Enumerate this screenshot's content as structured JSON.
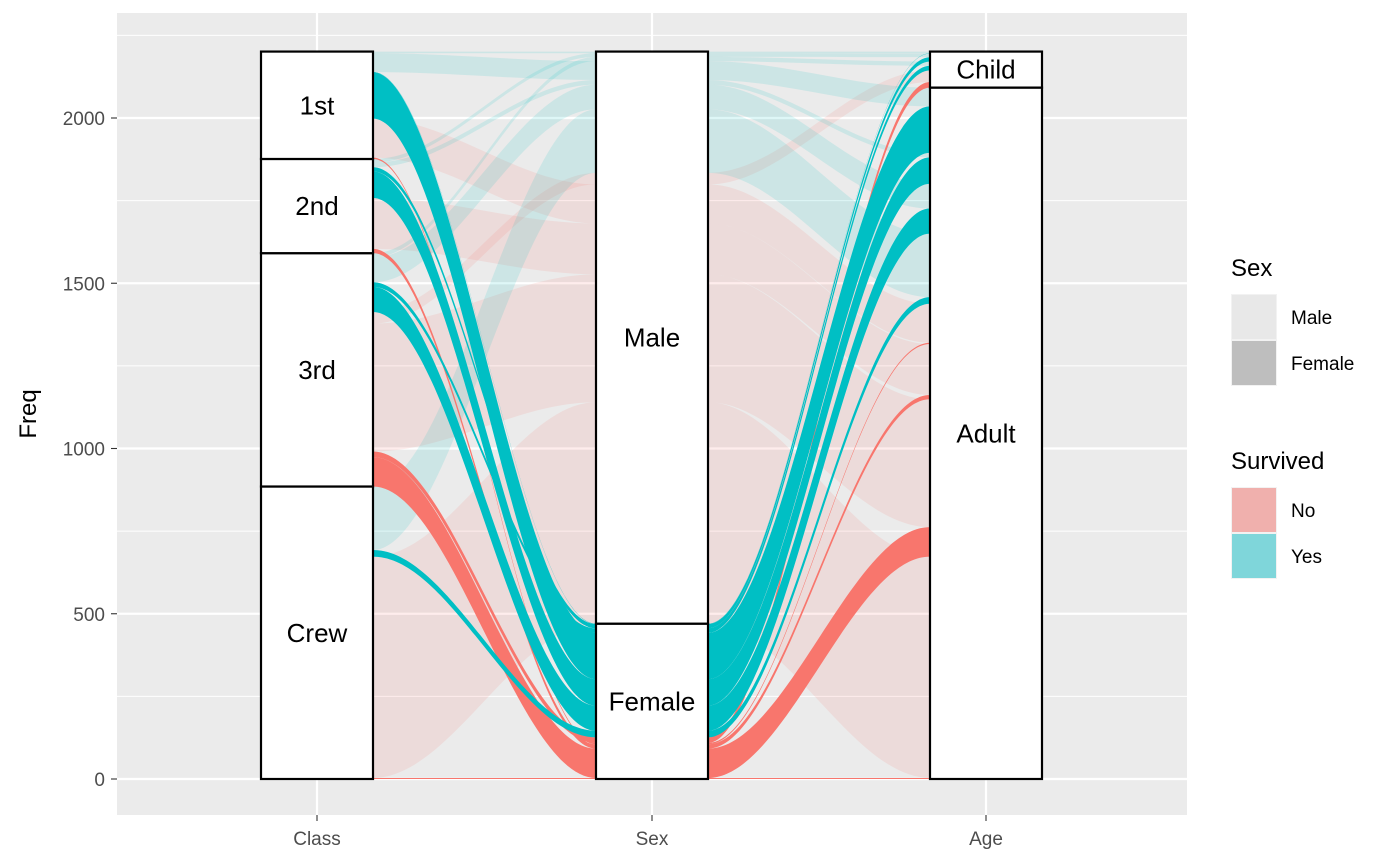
{
  "chart_data": {
    "type": "alluvial",
    "ylabel": "Freq",
    "ylim": [
      0,
      2200
    ],
    "y_ticks": [
      0,
      500,
      1000,
      1500,
      2000
    ],
    "axes": [
      "Class",
      "Sex",
      "Age"
    ],
    "strata": {
      "Class": [
        {
          "label": "Crew",
          "value": 885
        },
        {
          "label": "3rd",
          "value": 706
        },
        {
          "label": "2nd",
          "value": 285
        },
        {
          "label": "1st",
          "value": 325
        }
      ],
      "Sex": [
        {
          "label": "Female",
          "value": 470
        },
        {
          "label": "Male",
          "value": 1731
        }
      ],
      "Age": [
        {
          "label": "Adult",
          "value": 2092
        },
        {
          "label": "Child",
          "value": 109
        }
      ]
    },
    "flows": [
      {
        "Class": "1st",
        "Sex": "Male",
        "Age": "Child",
        "Survived": "No",
        "Freq": 0
      },
      {
        "Class": "2nd",
        "Sex": "Male",
        "Age": "Child",
        "Survived": "No",
        "Freq": 0
      },
      {
        "Class": "3rd",
        "Sex": "Male",
        "Age": "Child",
        "Survived": "No",
        "Freq": 35
      },
      {
        "Class": "Crew",
        "Sex": "Male",
        "Age": "Child",
        "Survived": "No",
        "Freq": 0
      },
      {
        "Class": "1st",
        "Sex": "Female",
        "Age": "Child",
        "Survived": "No",
        "Freq": 0
      },
      {
        "Class": "2nd",
        "Sex": "Female",
        "Age": "Child",
        "Survived": "No",
        "Freq": 0
      },
      {
        "Class": "3rd",
        "Sex": "Female",
        "Age": "Child",
        "Survived": "No",
        "Freq": 17
      },
      {
        "Class": "Crew",
        "Sex": "Female",
        "Age": "Child",
        "Survived": "No",
        "Freq": 0
      },
      {
        "Class": "1st",
        "Sex": "Male",
        "Age": "Adult",
        "Survived": "No",
        "Freq": 118
      },
      {
        "Class": "2nd",
        "Sex": "Male",
        "Age": "Adult",
        "Survived": "No",
        "Freq": 154
      },
      {
        "Class": "3rd",
        "Sex": "Male",
        "Age": "Adult",
        "Survived": "No",
        "Freq": 387
      },
      {
        "Class": "Crew",
        "Sex": "Male",
        "Age": "Adult",
        "Survived": "No",
        "Freq": 670
      },
      {
        "Class": "1st",
        "Sex": "Female",
        "Age": "Adult",
        "Survived": "No",
        "Freq": 4
      },
      {
        "Class": "2nd",
        "Sex": "Female",
        "Age": "Adult",
        "Survived": "No",
        "Freq": 13
      },
      {
        "Class": "3rd",
        "Sex": "Female",
        "Age": "Adult",
        "Survived": "No",
        "Freq": 89
      },
      {
        "Class": "Crew",
        "Sex": "Female",
        "Age": "Adult",
        "Survived": "No",
        "Freq": 3
      },
      {
        "Class": "1st",
        "Sex": "Male",
        "Age": "Child",
        "Survived": "Yes",
        "Freq": 5
      },
      {
        "Class": "2nd",
        "Sex": "Male",
        "Age": "Child",
        "Survived": "Yes",
        "Freq": 11
      },
      {
        "Class": "3rd",
        "Sex": "Male",
        "Age": "Child",
        "Survived": "Yes",
        "Freq": 13
      },
      {
        "Class": "Crew",
        "Sex": "Male",
        "Age": "Child",
        "Survived": "Yes",
        "Freq": 0
      },
      {
        "Class": "1st",
        "Sex": "Female",
        "Age": "Child",
        "Survived": "Yes",
        "Freq": 1
      },
      {
        "Class": "2nd",
        "Sex": "Female",
        "Age": "Child",
        "Survived": "Yes",
        "Freq": 13
      },
      {
        "Class": "3rd",
        "Sex": "Female",
        "Age": "Child",
        "Survived": "Yes",
        "Freq": 14
      },
      {
        "Class": "Crew",
        "Sex": "Female",
        "Age": "Child",
        "Survived": "Yes",
        "Freq": 0
      },
      {
        "Class": "1st",
        "Sex": "Male",
        "Age": "Adult",
        "Survived": "Yes",
        "Freq": 57
      },
      {
        "Class": "2nd",
        "Sex": "Male",
        "Age": "Adult",
        "Survived": "Yes",
        "Freq": 14
      },
      {
        "Class": "3rd",
        "Sex": "Male",
        "Age": "Adult",
        "Survived": "Yes",
        "Freq": 75
      },
      {
        "Class": "Crew",
        "Sex": "Male",
        "Age": "Adult",
        "Survived": "Yes",
        "Freq": 192
      },
      {
        "Class": "1st",
        "Sex": "Female",
        "Age": "Adult",
        "Survived": "Yes",
        "Freq": 140
      },
      {
        "Class": "2nd",
        "Sex": "Female",
        "Age": "Adult",
        "Survived": "Yes",
        "Freq": 80
      },
      {
        "Class": "3rd",
        "Sex": "Female",
        "Age": "Adult",
        "Survived": "Yes",
        "Freq": 76
      },
      {
        "Class": "Crew",
        "Sex": "Female",
        "Age": "Adult",
        "Survived": "Yes",
        "Freq": 20
      }
    ],
    "legend": {
      "position": "right",
      "groups": [
        {
          "title": "Sex",
          "entries": [
            {
              "label": "Male",
              "color": "#e8e8e8"
            },
            {
              "label": "Female",
              "color": "#bebebe"
            }
          ]
        },
        {
          "title": "Survived",
          "entries": [
            {
              "label": "No",
              "color": "#f0b0ad"
            },
            {
              "label": "Yes",
              "color": "#7fd6da"
            }
          ]
        }
      ]
    },
    "colors": {
      "No": "#f8766d",
      "Yes": "#00bfc4",
      "panel": "#ebebeb",
      "grid": "#ffffff"
    },
    "grid": true
  }
}
